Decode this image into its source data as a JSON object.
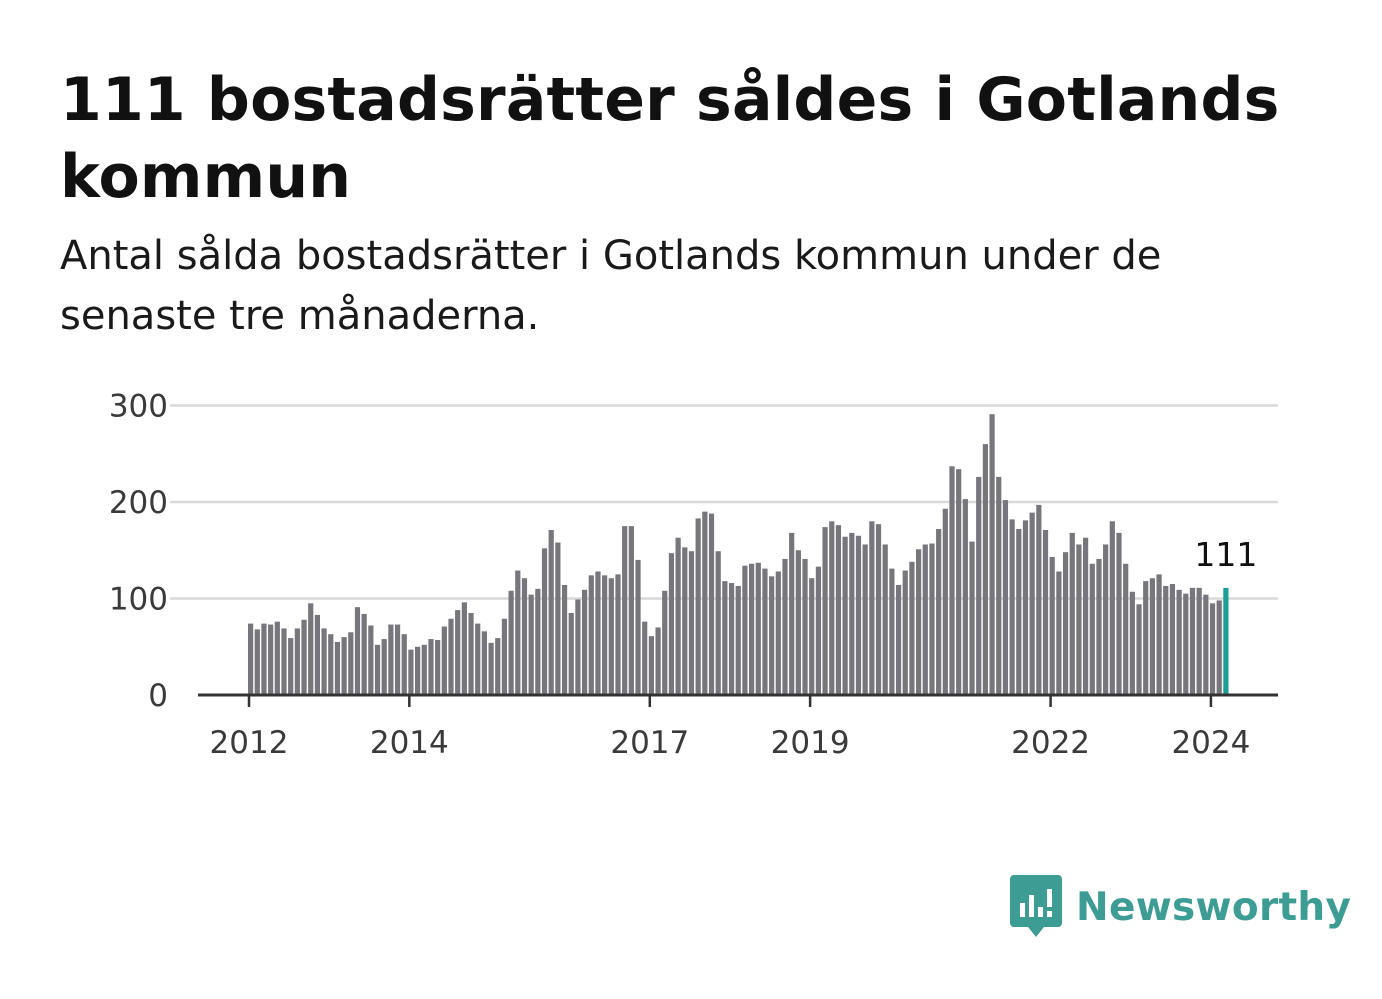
{
  "header": {
    "title": "111 bostadsrätter såldes i Gotlands kommun",
    "subtitle": "Antal sålda bostadsrätter i Gotlands kommun under de senaste tre månaderna."
  },
  "chart_data": {
    "type": "bar",
    "title": "111 bostadsrätter såldes i Gotlands kommun",
    "subtitle": "Antal sålda bostadsrätter i Gotlands kommun under de senaste tre månaderna.",
    "xlabel": "",
    "ylabel": "",
    "ylim": [
      0,
      300
    ],
    "yticks": [
      0,
      100,
      200,
      300
    ],
    "xticks": [
      "2012",
      "2014",
      "2017",
      "2019",
      "2022",
      "2024"
    ],
    "start_period": "2012-01",
    "grid": true,
    "legend": "none",
    "bar_color": "#77767c",
    "highlight_color": "#1a9e95",
    "last_value_label": "111",
    "values": [
      74,
      68,
      74,
      73,
      76,
      69,
      59,
      69,
      78,
      95,
      83,
      69,
      63,
      55,
      60,
      65,
      91,
      84,
      72,
      52,
      58,
      73,
      73,
      63,
      47,
      50,
      52,
      58,
      57,
      71,
      79,
      88,
      96,
      85,
      74,
      66,
      54,
      59,
      79,
      108,
      129,
      121,
      104,
      110,
      152,
      171,
      158,
      114,
      85,
      99,
      109,
      124,
      128,
      124,
      121,
      125,
      175,
      175,
      140,
      76,
      61,
      70,
      108,
      147,
      163,
      153,
      149,
      183,
      190,
      188,
      149,
      118,
      116,
      113,
      134,
      136,
      137,
      131,
      123,
      128,
      141,
      168,
      150,
      141,
      121,
      133,
      174,
      180,
      176,
      164,
      168,
      165,
      156,
      180,
      177,
      156,
      131,
      114,
      129,
      138,
      151,
      156,
      157,
      172,
      193,
      237,
      234,
      203,
      159,
      226,
      260,
      291,
      226,
      202,
      182,
      172,
      181,
      189,
      197,
      171,
      143,
      128,
      148,
      168,
      156,
      163,
      136,
      141,
      156,
      180,
      168,
      136,
      107,
      94,
      118,
      121,
      125,
      113,
      115,
      109,
      105,
      111,
      111,
      104,
      95,
      98,
      111
    ]
  },
  "brand": {
    "name": "Newsworthy",
    "color": "#3d9c94",
    "icon": "newsworthy-logo-icon"
  }
}
